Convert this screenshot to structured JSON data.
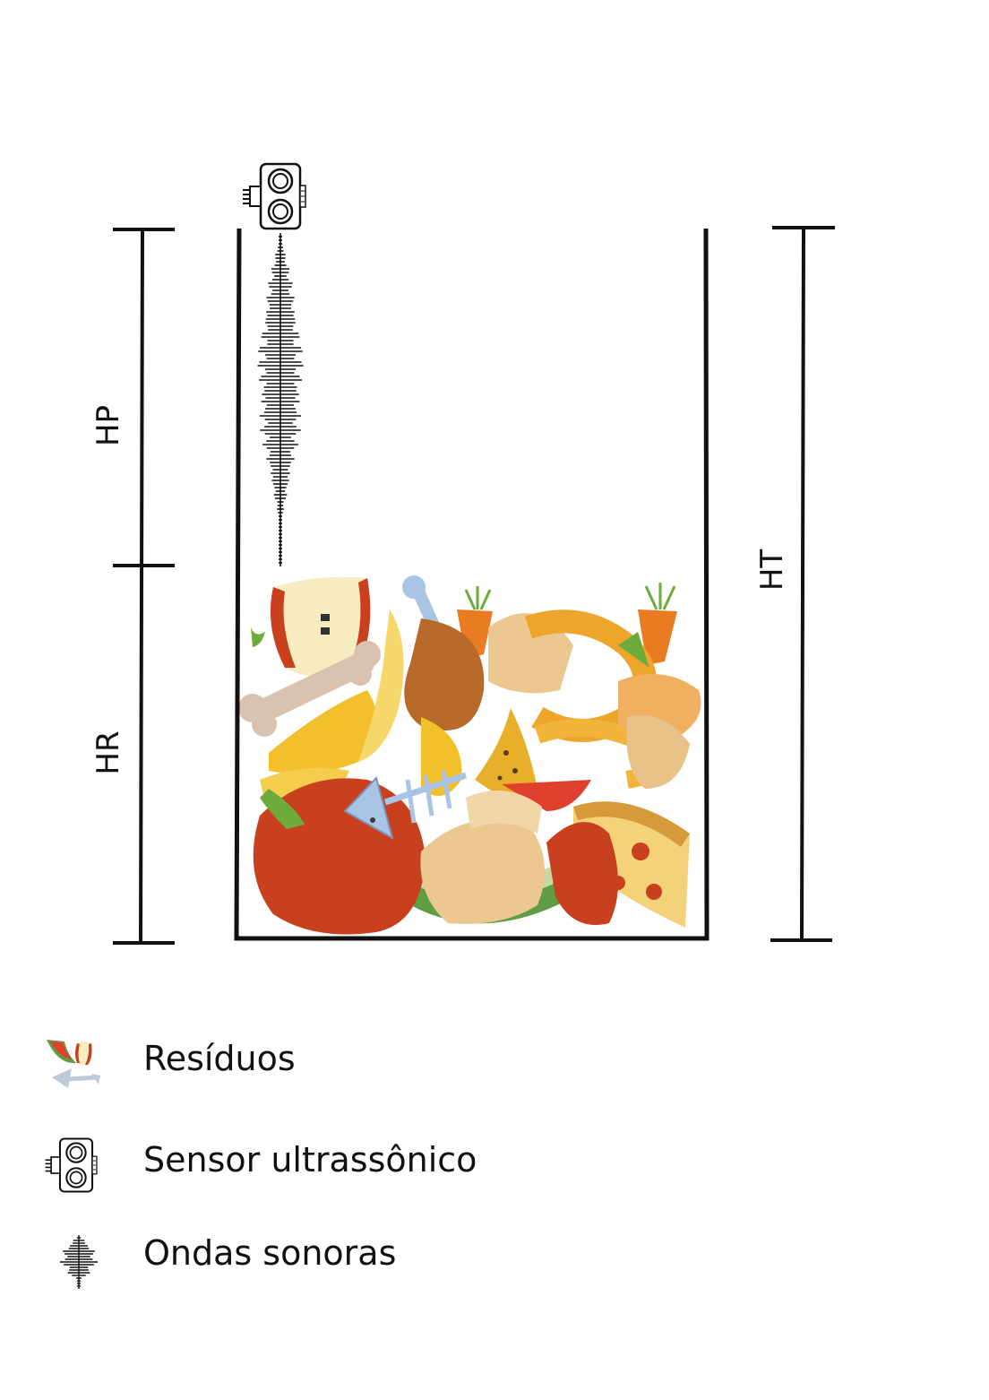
{
  "diagram": {
    "dimension_labels": {
      "hp": "HP",
      "hr": "HR",
      "ht": "HT"
    },
    "colors": {
      "line": "#111111",
      "apple_red": "#c9401f",
      "banana_yellow": "#f2c02c",
      "orange_peel": "#eea52b",
      "carrot": "#e97c22",
      "bone": "#d9c3b0",
      "fish_blue": "#a9c4e4",
      "eggshell": "#ecc890",
      "drumstick": "#b76a2a",
      "watermelon_green": "#5f9d44",
      "leaf_green": "#6cab3c"
    },
    "icons": {
      "sensor": "ultrasonic-sensor-icon",
      "waves": "sound-waves-icon",
      "waste": "waste-icon"
    }
  },
  "legend": {
    "items": [
      {
        "icon": "waste-icon",
        "label": "Resíduos"
      },
      {
        "icon": "ultrasonic-sensor-icon",
        "label": "Sensor ultrassônico"
      },
      {
        "icon": "sound-waves-icon",
        "label": "Ondas sonoras"
      }
    ]
  }
}
